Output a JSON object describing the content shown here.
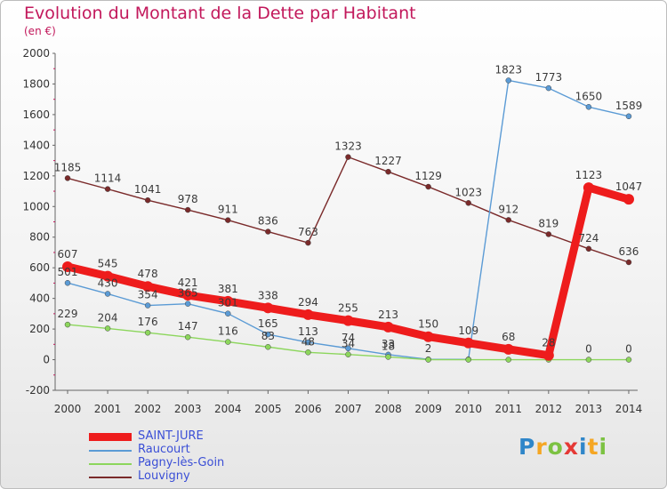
{
  "title": "Evolution du Montant de la Dette par Habitant",
  "subtitle": "(en €)",
  "logo": {
    "text": "Proxiti",
    "colors": [
      "#2f86c9",
      "#f5a623",
      "#7cc242",
      "#e53935",
      "#2f86c9",
      "#f5a623",
      "#7cc242"
    ]
  },
  "chart_data": {
    "type": "line",
    "x": [
      "2000",
      "2001",
      "2002",
      "2003",
      "2004",
      "2005",
      "2006",
      "2007",
      "2008",
      "2009",
      "2010",
      "2011",
      "2012",
      "2013",
      "2014"
    ],
    "ylim": [
      -200,
      2000
    ],
    "yticks": [
      "2000",
      "1800",
      "1600",
      "1400",
      "1200",
      "1000",
      "800",
      "600",
      "400",
      "200",
      "0",
      "-200"
    ],
    "grid": false,
    "legend_position": "bottom-left",
    "series": [
      {
        "name": "Louvigny",
        "color": "#7a2a2a",
        "values": [
          1185,
          1114,
          1041,
          978,
          911,
          836,
          763,
          1323,
          1227,
          1129,
          1023,
          912,
          819,
          724,
          636
        ]
      },
      {
        "name": "Raucourt",
        "color": "#5b9bd5",
        "values": [
          501,
          430,
          354,
          365,
          301,
          165,
          113,
          74,
          33,
          2,
          2,
          1823,
          1773,
          1650,
          1589
        ]
      },
      {
        "name": "Pagny-lès-Goin",
        "color": "#8cd65c",
        "values": [
          229,
          204,
          176,
          147,
          116,
          83,
          48,
          34,
          18,
          0,
          0,
          0,
          0,
          0,
          0
        ]
      },
      {
        "name": "SAINT-JURE",
        "color": "#ee1c1c",
        "values": [
          607,
          545,
          478,
          421,
          381,
          338,
          294,
          255,
          213,
          150,
          109,
          68,
          28,
          1123,
          1047
        ]
      }
    ],
    "data_labels": {
      "Louvigny": [
        "1185",
        "1114",
        "1041",
        "978",
        "911",
        "836",
        "763",
        "1323",
        "1227",
        "1129",
        "1023",
        "912",
        "819",
        "724",
        "636"
      ],
      "Raucourt": [
        "501",
        "430",
        "354",
        "365",
        "301",
        "165",
        "113",
        "74",
        "33",
        "2",
        "",
        "1823",
        "1773",
        "1650",
        "1589"
      ],
      "Pagny-lès-Goin": [
        "229",
        "204",
        "176",
        "147",
        "116",
        "83",
        "48",
        "34",
        "18",
        "",
        "",
        "",
        "",
        "0",
        "0"
      ],
      "SAINT-JURE": [
        "607",
        "545",
        "478",
        "421",
        "381",
        "338",
        "294",
        "255",
        "213",
        "150",
        "109",
        "68",
        "28",
        "1123",
        "1047"
      ]
    }
  },
  "legend": [
    {
      "name": "SAINT-JURE",
      "color": "#ee1c1c",
      "thick": true
    },
    {
      "name": "Raucourt",
      "color": "#5b9bd5",
      "thick": false
    },
    {
      "name": "Pagny-lès-Goin",
      "color": "#8cd65c",
      "thick": false
    },
    {
      "name": "Louvigny",
      "color": "#7a2a2a",
      "thick": false
    }
  ]
}
